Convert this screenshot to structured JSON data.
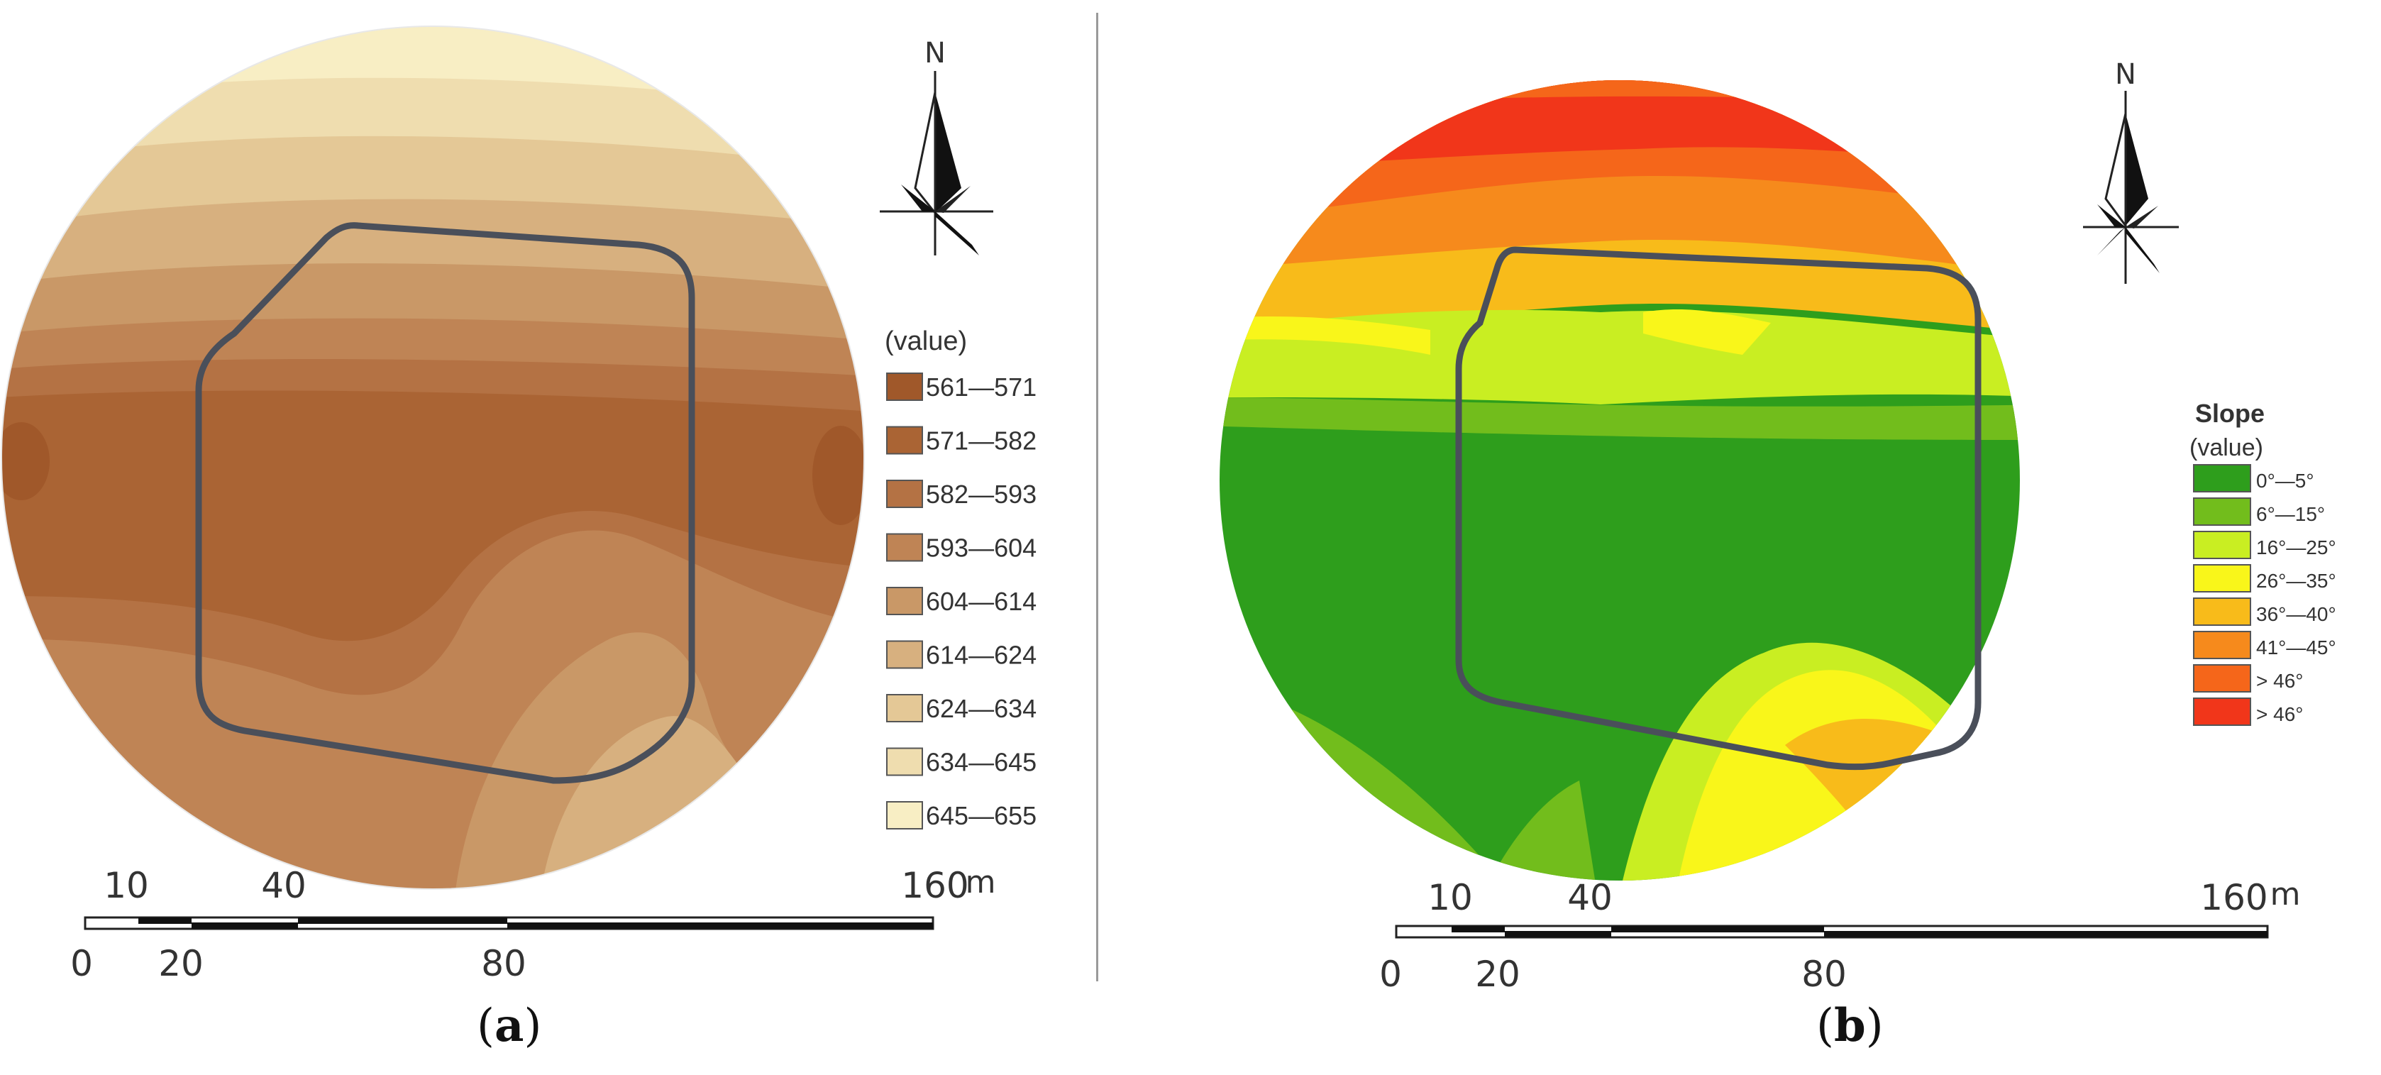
{
  "panels": [
    {
      "id": "a",
      "caption_letter": "a",
      "north_label": "N",
      "legend": {
        "title": "",
        "unit_label": "(value)",
        "items": [
          {
            "label": "561—571",
            "color": "#a0582a"
          },
          {
            "label": "571—582",
            "color": "#aa6434"
          },
          {
            "label": "582—593",
            "color": "#b47244"
          },
          {
            "label": "593—604",
            "color": "#bf8455"
          },
          {
            "label": "604—614",
            "color": "#c99867"
          },
          {
            "label": "614—624",
            "color": "#d7b07f"
          },
          {
            "label": "624—634",
            "color": "#e4c896"
          },
          {
            "label": "634—645",
            "color": "#efddaf"
          },
          {
            "label": "645—655",
            "color": "#f8eec4"
          }
        ]
      },
      "scale": {
        "top_labels": [
          "10",
          "40",
          "160"
        ],
        "bottom_labels": [
          "0",
          "20",
          "80"
        ],
        "unit": "m"
      }
    },
    {
      "id": "b",
      "caption_letter": "b",
      "north_label": "N",
      "legend": {
        "title": "Slope",
        "unit_label": "(value)",
        "items": [
          {
            "label": "0°—5°",
            "color": "#2e9e1c"
          },
          {
            "label": "6°—15°",
            "color": "#72bd1c"
          },
          {
            "label": "16°—25°",
            "color": "#c9ee22"
          },
          {
            "label": "26°—35°",
            "color": "#f9f61a"
          },
          {
            "label": "36°—40°",
            "color": "#f8bb1a"
          },
          {
            "label": "41°—45°",
            "color": "#f68a1c"
          },
          {
            "label": "> 46°",
            "color": "#f5661a"
          },
          {
            "label": "> 46°",
            "color": "#f1361a"
          }
        ]
      },
      "scale": {
        "top_labels": [
          "10",
          "40",
          "160"
        ],
        "bottom_labels": [
          "0",
          "20",
          "80"
        ],
        "unit": "m"
      }
    }
  ]
}
